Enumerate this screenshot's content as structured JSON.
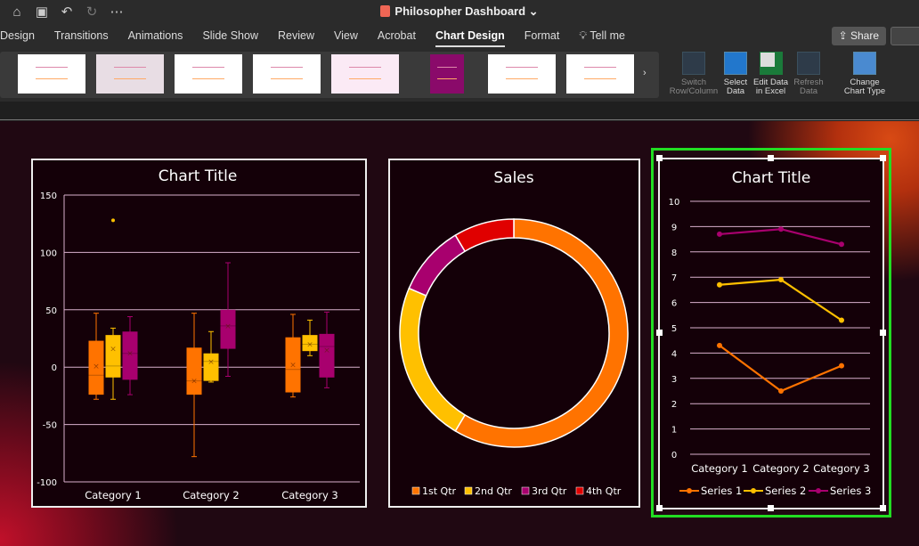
{
  "window": {
    "title": "Philosopher Dashboard"
  },
  "tabs": [
    "Design",
    "Transitions",
    "Animations",
    "Slide Show",
    "Review",
    "View",
    "Acrobat",
    "Chart Design",
    "Format",
    "Tell me"
  ],
  "active_tab": "Chart Design",
  "share_label": "Share",
  "ribbon": {
    "switch": "Switch Row/Column",
    "select": "Select Data",
    "edit": "Edit Data in Excel",
    "refresh": "Refresh Data",
    "change": "Change Chart Type"
  },
  "colors": {
    "s1": "#ff7300",
    "s2": "#ffc000",
    "s3": "#a8006e",
    "s4": "#e00000",
    "grid": "#d8b0cc"
  },
  "chart_data": [
    {
      "type": "boxplot",
      "title": "Chart Title",
      "ylim": [
        -100,
        150
      ],
      "yticks": [
        150,
        100,
        50,
        0,
        -50,
        -100
      ],
      "categories": [
        "Category 1",
        "Category 2",
        "Category 3"
      ],
      "series": [
        {
          "boxes": [
            {
              "min": -28,
              "q1": -24,
              "median": -7,
              "q3": 23,
              "max": 47,
              "mean": 1
            },
            {
              "min": -78,
              "q1": -24,
              "median": -12,
              "q3": 17,
              "max": 47,
              "mean": -12
            },
            {
              "min": -26,
              "q1": -22,
              "median": -2,
              "q3": 26,
              "max": 46,
              "mean": 2
            }
          ]
        },
        {
          "boxes": [
            {
              "min": -28,
              "q1": -9,
              "median": 1,
              "q3": 28,
              "max": 34,
              "mean": 16,
              "outliers": [
                128
              ]
            },
            {
              "min": -13,
              "q1": -12,
              "median": 5,
              "q3": 12,
              "max": 31,
              "mean": 5
            },
            {
              "min": 10,
              "q1": 14,
              "median": 20,
              "q3": 28,
              "max": 41,
              "mean": 20
            }
          ]
        },
        {
          "boxes": [
            {
              "min": -24,
              "q1": -11,
              "median": 12,
              "q3": 31,
              "max": 44,
              "mean": 12
            },
            {
              "min": -8,
              "q1": 16,
              "median": 36,
              "q3": 50,
              "max": 91,
              "mean": 36
            },
            {
              "min": -18,
              "q1": -9,
              "median": 18,
              "q3": 29,
              "max": 48,
              "mean": 15
            }
          ]
        }
      ]
    },
    {
      "type": "pie",
      "title": "Sales",
      "categories": [
        "1st Qtr",
        "2nd Qtr",
        "3rd Qtr",
        "4th Qtr"
      ],
      "values": [
        8.2,
        3.2,
        1.4,
        1.2
      ],
      "legend": "bottom"
    },
    {
      "type": "line",
      "title": "Chart Title",
      "ylim": [
        0,
        10
      ],
      "yticks": [
        10,
        9,
        8,
        7,
        6,
        5,
        4,
        3,
        2,
        1,
        0
      ],
      "categories": [
        "Category 1",
        "Category 2",
        "Category 3"
      ],
      "series": [
        {
          "name": "Series 1",
          "values": [
            4.3,
            2.5,
            3.5
          ]
        },
        {
          "name": "Series 2",
          "values": [
            6.7,
            6.9,
            5.3
          ]
        },
        {
          "name": "Series 3",
          "values": [
            8.7,
            8.9,
            8.3
          ]
        }
      ],
      "legend": "bottom"
    }
  ]
}
